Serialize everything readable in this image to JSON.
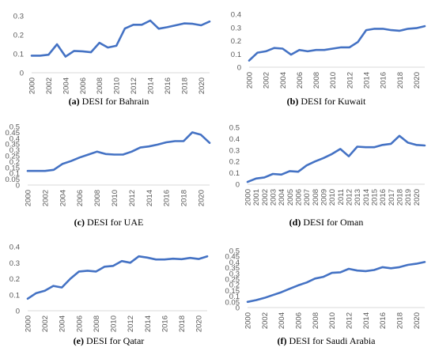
{
  "chart_data": [
    {
      "type": "line",
      "caption_letter": "(a)",
      "caption_text": "DESI for Bahrain",
      "x": [
        2000,
        2001,
        2002,
        2003,
        2004,
        2005,
        2006,
        2007,
        2008,
        2009,
        2010,
        2011,
        2012,
        2013,
        2014,
        2015,
        2016,
        2017,
        2018,
        2019,
        2020,
        2021
      ],
      "values": [
        0.09,
        0.09,
        0.095,
        0.15,
        0.085,
        0.115,
        0.113,
        0.108,
        0.158,
        0.133,
        0.142,
        0.233,
        0.253,
        0.253,
        0.275,
        0.232,
        0.24,
        0.25,
        0.26,
        0.258,
        0.25,
        0.27
      ],
      "xticks": [
        2000,
        2002,
        2004,
        2006,
        2008,
        2010,
        2012,
        2014,
        2016,
        2018,
        2020
      ],
      "yticks": [
        0,
        0.1,
        0.2,
        0.3
      ],
      "ylim": [
        0,
        0.3
      ],
      "color": "#4472C4"
    },
    {
      "type": "line",
      "caption_letter": "(b)",
      "caption_text": "DESI for Kuwait",
      "x": [
        2000,
        2001,
        2002,
        2003,
        2004,
        2005,
        2006,
        2007,
        2008,
        2009,
        2010,
        2011,
        2012,
        2013,
        2014,
        2015,
        2016,
        2017,
        2018,
        2019,
        2020,
        2021
      ],
      "values": [
        0.05,
        0.11,
        0.12,
        0.145,
        0.14,
        0.095,
        0.13,
        0.12,
        0.13,
        0.13,
        0.14,
        0.15,
        0.15,
        0.19,
        0.28,
        0.29,
        0.29,
        0.28,
        0.275,
        0.29,
        0.295,
        0.31
      ],
      "xticks": [
        2000,
        2002,
        2004,
        2006,
        2008,
        2010,
        2012,
        2014,
        2016,
        2018,
        2020
      ],
      "yticks": [
        0,
        0.1,
        0.2,
        0.3,
        0.4
      ],
      "ylim": [
        0,
        0.4
      ],
      "color": "#4472C4"
    },
    {
      "type": "line",
      "caption_letter": "(c)",
      "caption_text": "DESI for UAE",
      "x": [
        2000,
        2001,
        2002,
        2003,
        2004,
        2005,
        2006,
        2007,
        2008,
        2009,
        2010,
        2011,
        2012,
        2013,
        2014,
        2015,
        2016,
        2017,
        2018,
        2019,
        2020,
        2021
      ],
      "values": [
        0.12,
        0.12,
        0.12,
        0.13,
        0.18,
        0.205,
        0.235,
        0.26,
        0.285,
        0.265,
        0.26,
        0.26,
        0.285,
        0.32,
        0.33,
        0.345,
        0.365,
        0.375,
        0.375,
        0.45,
        0.43,
        0.36
      ],
      "xticks": [
        2000,
        2002,
        2004,
        2006,
        2008,
        2010,
        2012,
        2014,
        2016,
        2018,
        2020
      ],
      "yticks": [
        0,
        0.05,
        0.1,
        0.15,
        0.2,
        0.25,
        0.3,
        0.35,
        0.4,
        0.45,
        0.5
      ],
      "ytick_labels": [
        "0",
        "0.05",
        "0.1",
        "0.15",
        "0.2",
        "0.25",
        "0.3",
        "0.35",
        "0.4",
        "0.45",
        "0.5"
      ],
      "ylim": [
        0,
        0.5
      ],
      "color": "#4472C4"
    },
    {
      "type": "line",
      "caption_letter": "(d)",
      "caption_text": "DESI for Oman",
      "x": [
        2000,
        2001,
        2002,
        2003,
        2004,
        2005,
        2006,
        2007,
        2008,
        2009,
        2010,
        2011,
        2012,
        2013,
        2014,
        2015,
        2016,
        2017,
        2018,
        2019,
        2020,
        2021
      ],
      "values": [
        0.02,
        0.05,
        0.06,
        0.09,
        0.085,
        0.115,
        0.11,
        0.165,
        0.2,
        0.23,
        0.265,
        0.31,
        0.245,
        0.33,
        0.325,
        0.325,
        0.345,
        0.355,
        0.425,
        0.365,
        0.345,
        0.34
      ],
      "xticks": [
        2000,
        2001,
        2002,
        2003,
        2004,
        2005,
        2006,
        2007,
        2008,
        2009,
        2010,
        2011,
        2012,
        2013,
        2014,
        2015,
        2016,
        2017,
        2018,
        2019,
        2020
      ],
      "yticks": [
        0,
        0.1,
        0.2,
        0.3,
        0.4,
        0.5
      ],
      "ylim": [
        0,
        0.5
      ],
      "color": "#4472C4"
    },
    {
      "type": "line",
      "caption_letter": "(e)",
      "caption_text": "DESI for Qatar",
      "x": [
        2000,
        2001,
        2002,
        2003,
        2004,
        2005,
        2006,
        2007,
        2008,
        2009,
        2010,
        2011,
        2012,
        2013,
        2014,
        2015,
        2016,
        2017,
        2018,
        2019,
        2020,
        2021
      ],
      "values": [
        0.075,
        0.11,
        0.125,
        0.155,
        0.145,
        0.2,
        0.245,
        0.25,
        0.245,
        0.275,
        0.28,
        0.31,
        0.3,
        0.34,
        0.332,
        0.32,
        0.32,
        0.325,
        0.322,
        0.33,
        0.323,
        0.34
      ],
      "xticks": [
        2000,
        2002,
        2004,
        2006,
        2008,
        2010,
        2012,
        2014,
        2016,
        2018,
        2020
      ],
      "yticks": [
        0,
        0.1,
        0.2,
        0.3,
        0.4
      ],
      "ylim": [
        0,
        0.4
      ],
      "color": "#4472C4"
    },
    {
      "type": "line",
      "caption_letter": "(f)",
      "caption_text": "DESI for Saudi Arabia",
      "x": [
        2000,
        2001,
        2002,
        2003,
        2004,
        2005,
        2006,
        2007,
        2008,
        2009,
        2010,
        2011,
        2012,
        2013,
        2014,
        2015,
        2016,
        2017,
        2018,
        2019,
        2020,
        2021
      ],
      "values": [
        0.05,
        0.065,
        0.085,
        0.11,
        0.135,
        0.165,
        0.195,
        0.22,
        0.255,
        0.27,
        0.305,
        0.31,
        0.34,
        0.325,
        0.32,
        0.33,
        0.355,
        0.345,
        0.355,
        0.375,
        0.385,
        0.4
      ],
      "xticks": [
        2000,
        2002,
        2004,
        2006,
        2008,
        2010,
        2012,
        2014,
        2016,
        2018,
        2020
      ],
      "yticks": [
        0,
        0.05,
        0.1,
        0.15,
        0.2,
        0.25,
        0.3,
        0.35,
        0.4,
        0.45,
        0.5
      ],
      "ytick_labels": [
        "0",
        "0.05",
        "0.1",
        "0.15",
        "0.2",
        "0.25",
        "0.3",
        "0.35",
        "0.4",
        "0.45",
        "0.5"
      ],
      "ylim": [
        0,
        0.5
      ],
      "color": "#4472C4"
    }
  ]
}
